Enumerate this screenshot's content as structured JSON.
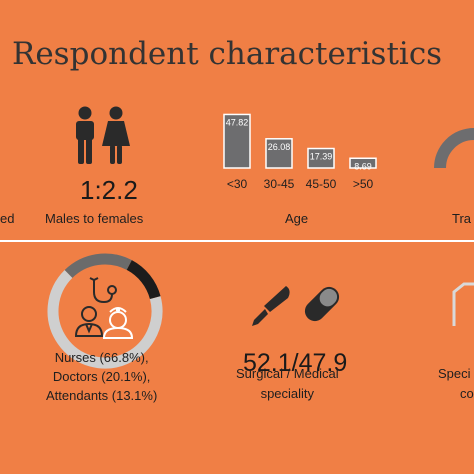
{
  "title": "Respondent characteristics",
  "row1": {
    "left_cut_label": "ed",
    "gender": {
      "ratio": "1:2.2",
      "caption": "Males to females"
    },
    "age": {
      "caption": "Age"
    },
    "right_cut_label": "Tra"
  },
  "row2": {
    "cadre": {
      "lines": [
        "Nurses (66.8%),",
        "Doctors (20.1%),",
        "Attendants (13.1%)"
      ]
    },
    "speciality": {
      "ratio": "52.1/47.9",
      "lines": [
        "Surgical / Medical",
        "speciality"
      ]
    },
    "right_cut_lines": [
      "Speci",
      "co"
    ]
  },
  "colors": {
    "background": "#f07f45",
    "bar_fill": "#6d6d6f",
    "bar_border": "#ffffff",
    "icon_dark": "#2a2a2a",
    "donut_gray": "#cfcfcf",
    "donut_dark": "#1c1c1c",
    "donut_mid": "#6b6b6b"
  },
  "chart_data": [
    {
      "type": "bar",
      "categories": [
        "<30",
        "30-45",
        "45-50",
        ">50"
      ],
      "values": [
        47.82,
        26.08,
        17.39,
        8.69
      ],
      "value_labels": [
        "47.82",
        "26.08",
        "17.39",
        "8.69"
      ],
      "xlabel": "Age",
      "ylim": [
        0,
        50
      ]
    },
    {
      "type": "pie",
      "categories": [
        "Nurses",
        "Doctors",
        "Attendants"
      ],
      "values": [
        66.8,
        20.1,
        13.1
      ]
    }
  ]
}
